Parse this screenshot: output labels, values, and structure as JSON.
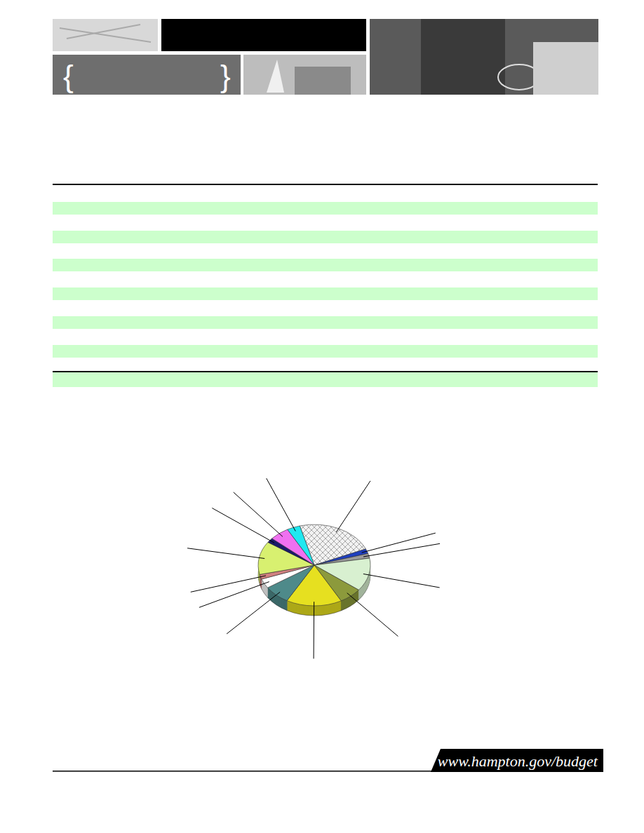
{
  "header": {
    "brace_open": "{",
    "brace_close": "}"
  },
  "chart_data": {
    "type": "pie",
    "values": [
      24,
      2,
      2,
      14,
      7,
      17,
      8,
      4,
      2,
      14,
      2,
      6,
      4
    ],
    "colors": [
      "#f2f2f2",
      "#1f3fbf",
      "#9a9a9a",
      "#d8f0d0",
      "#8c9a3c",
      "#e6e020",
      "#4e8a8a",
      "#ffffff",
      "#d08080",
      "#d8f070",
      "#1a1a6a",
      "#f070f0",
      "#20e8f0"
    ]
  },
  "footer": {
    "url": "www.hampton.gov/budget"
  }
}
